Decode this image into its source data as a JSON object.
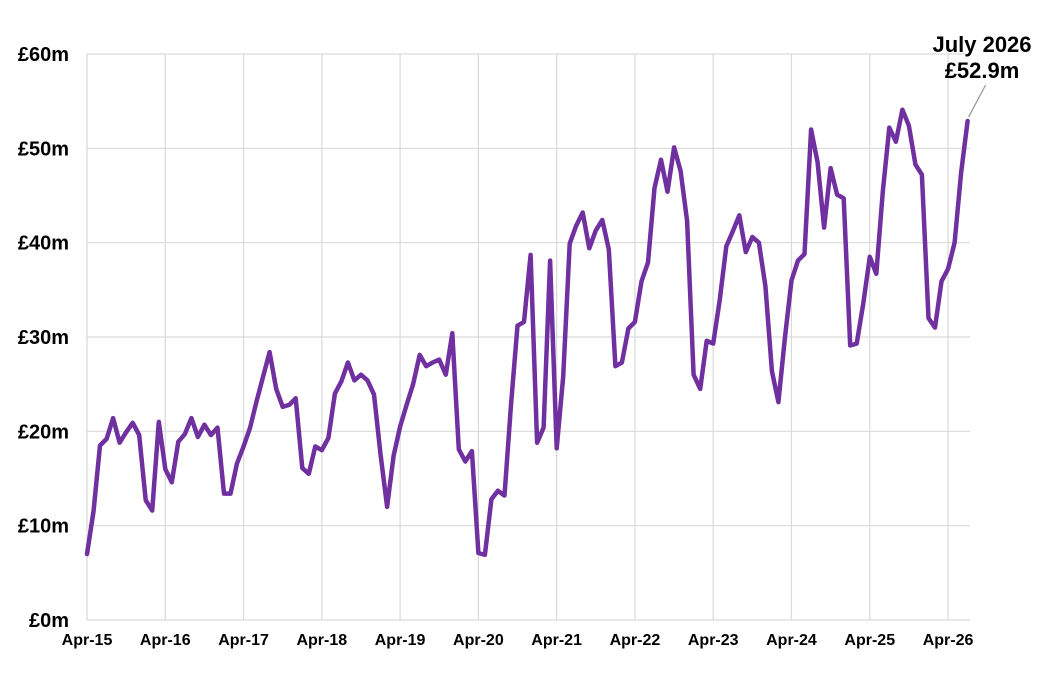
{
  "chart_data": {
    "type": "line",
    "title": "",
    "xlabel": "",
    "ylabel": "",
    "x_start": "2015-04",
    "x_step": "month",
    "x_tick_labels": [
      "Apr-15",
      "Apr-16",
      "Apr-17",
      "Apr-18",
      "Apr-19",
      "Apr-20",
      "Apr-21",
      "Apr-22",
      "Apr-23",
      "Apr-24",
      "Apr-25",
      "Apr-26"
    ],
    "y_tick_labels": [
      "£0m",
      "£10m",
      "£20m",
      "£30m",
      "£40m",
      "£50m",
      "£60m"
    ],
    "ylim": [
      0,
      60
    ],
    "y_unit": "£m",
    "grid": true,
    "legend": "none",
    "series": [
      {
        "color": "#7030A0",
        "values": [
          7.0,
          11.5,
          18.5,
          19.2,
          21.4,
          18.8,
          19.9,
          20.9,
          19.6,
          12.7,
          11.6,
          21.0,
          16.0,
          14.6,
          18.9,
          19.7,
          21.4,
          19.4,
          20.7,
          19.6,
          20.4,
          13.4,
          13.4,
          16.6,
          18.4,
          20.4,
          23.2,
          25.8,
          28.4,
          24.5,
          22.6,
          22.8,
          23.5,
          16.1,
          15.5,
          18.4,
          18.0,
          19.3,
          24.0,
          25.3,
          27.3,
          25.4,
          26.0,
          25.4,
          23.9,
          17.6,
          12.0,
          17.4,
          20.5,
          22.8,
          25.0,
          28.1,
          26.9,
          27.3,
          27.6,
          26.0,
          30.4,
          18.1,
          16.8,
          17.9,
          7.1,
          6.9,
          12.8,
          13.7,
          13.2,
          22.8,
          31.2,
          31.6,
          38.7,
          18.8,
          20.4,
          38.1,
          18.2,
          25.8,
          39.9,
          41.8,
          43.2,
          39.4,
          41.3,
          42.4,
          39.3,
          26.9,
          27.3,
          30.9,
          31.6,
          35.9,
          37.9,
          45.8,
          48.8,
          45.4,
          50.1,
          47.6,
          42.3,
          26.0,
          24.5,
          29.6,
          29.3,
          33.9,
          39.6,
          41.2,
          42.9,
          39.0,
          40.6,
          40.0,
          35.4,
          26.4,
          23.1,
          30.0,
          36.0,
          38.1,
          38.8,
          52.0,
          48.5,
          41.6,
          47.9,
          45.1,
          44.7,
          29.1,
          29.3,
          33.5,
          38.5,
          36.7,
          45.4,
          52.2,
          50.7,
          54.1,
          52.4,
          48.3,
          47.2,
          32.0,
          31.0,
          35.9,
          37.2,
          40.0,
          47.4,
          52.9
        ]
      }
    ],
    "annotations": [
      {
        "label_line1": "July 2026",
        "label_line2": "£52.9m",
        "x": "2026-07",
        "y": 52.9
      }
    ]
  }
}
